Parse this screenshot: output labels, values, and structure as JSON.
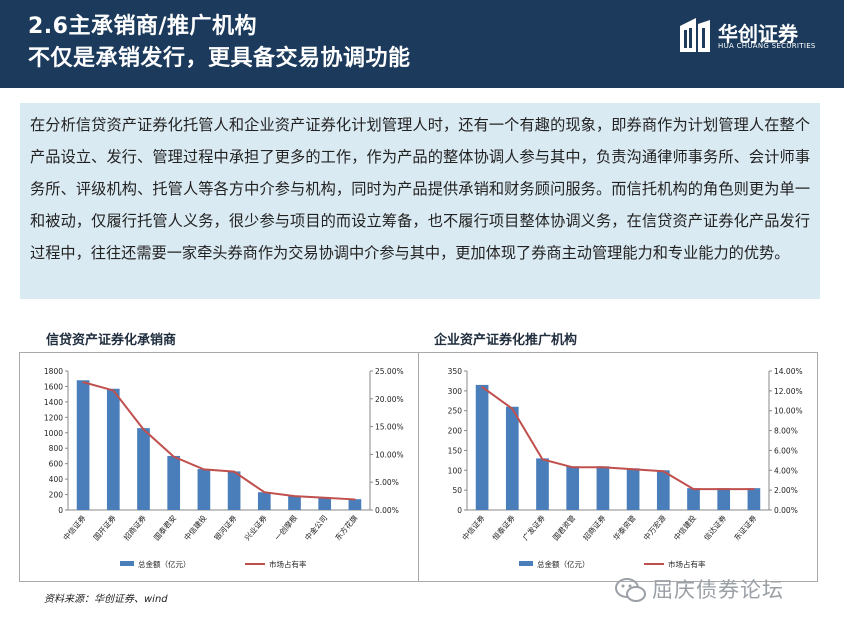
{
  "header": {
    "title_line1": "2.6主承销商/推广机构",
    "title_line2": "不仅是承销发行，更具备交易协调功能"
  },
  "logo": {
    "name_cn": "华创证券",
    "name_en": "HUA CHUANG SECURITIES",
    "icon": "building-logo-icon"
  },
  "intro_text": "在分析信贷资产证券化托管人和企业资产证券化计划管理人时，还有一个有趣的现象，即券商作为计划管理人在整个产品设立、发行、管理过程中承担了更多的工作，作为产品的整体协调人参与其中，负责沟通律师事务所、会计师事务所、评级机构、托管人等各方中介参与机构，同时为产品提供承销和财务顾问服务。而信托机构的角色则更为单一和被动，仅履行托管人义务，很少参与项目的而设立筹备，也不履行项目整体协调义务，在信贷资产证券化产品发行过程中，往往还需要一家牵头券商作为交易协调中介参与其中，更加体现了券商主动管理能力和专业能力的优势。",
  "source": "资料来源：华创证券、wind",
  "watermark": {
    "text": "屈庆债券论坛",
    "icon": "wechat-icon"
  },
  "chart_data": [
    {
      "type": "bar",
      "title": "信贷资产证券化承销商",
      "categories": [
        "中信证券",
        "国开证券",
        "招商证券",
        "国泰君安",
        "中信建投",
        "银河证券",
        "兴业证券",
        "一创摩根",
        "中金公司",
        "东方花旗"
      ],
      "series": [
        {
          "name": "总金额（亿元）",
          "type": "bar",
          "axis": "left",
          "color": "#4a7ebb",
          "values": [
            1680,
            1570,
            1060,
            700,
            530,
            500,
            230,
            180,
            160,
            140
          ]
        },
        {
          "name": "市场占有率",
          "type": "line",
          "axis": "right",
          "color": "#c0504d",
          "values": [
            0.23,
            0.215,
            0.145,
            0.096,
            0.073,
            0.069,
            0.032,
            0.025,
            0.022,
            0.019
          ]
        }
      ],
      "ylim_left": [
        0,
        1800
      ],
      "ylim_right": [
        0,
        0.25
      ],
      "yticks_left": [
        "0",
        "200",
        "400",
        "600",
        "800",
        "1000",
        "1200",
        "1400",
        "1600",
        "1800"
      ],
      "yticks_right": [
        "0.00%",
        "5.00%",
        "10.00%",
        "15.00%",
        "20.00%",
        "25.00%"
      ],
      "legend": [
        "总金额（亿元）",
        "市场占有率"
      ],
      "legend_position": "bottom"
    },
    {
      "type": "bar",
      "title": "企业资产证券化推广机构",
      "categories": [
        "中信证券",
        "恒泰证券",
        "广发证券",
        "国君资管",
        "招商证券",
        "华泰资管",
        "中万宏源",
        "中信建投",
        "信达证券",
        "东证证券"
      ],
      "series": [
        {
          "name": "总金额（亿元）",
          "type": "bar",
          "axis": "left",
          "color": "#4a7ebb",
          "values": [
            315,
            260,
            130,
            110,
            110,
            105,
            100,
            55,
            55,
            55
          ]
        },
        {
          "name": "市场占有率",
          "type": "line",
          "axis": "right",
          "color": "#c0504d",
          "values": [
            0.124,
            0.102,
            0.051,
            0.043,
            0.043,
            0.041,
            0.039,
            0.021,
            0.021,
            0.021
          ]
        }
      ],
      "ylim_left": [
        0,
        350
      ],
      "ylim_right": [
        0,
        0.14
      ],
      "yticks_left": [
        "0",
        "50",
        "100",
        "150",
        "200",
        "250",
        "300",
        "350"
      ],
      "yticks_right": [
        "0.00%",
        "2.00%",
        "4.00%",
        "6.00%",
        "8.00%",
        "10.00%",
        "12.00%",
        "14.00%"
      ],
      "legend": [
        "总金额（亿元）",
        "市场占有率"
      ],
      "legend_position": "bottom"
    }
  ]
}
